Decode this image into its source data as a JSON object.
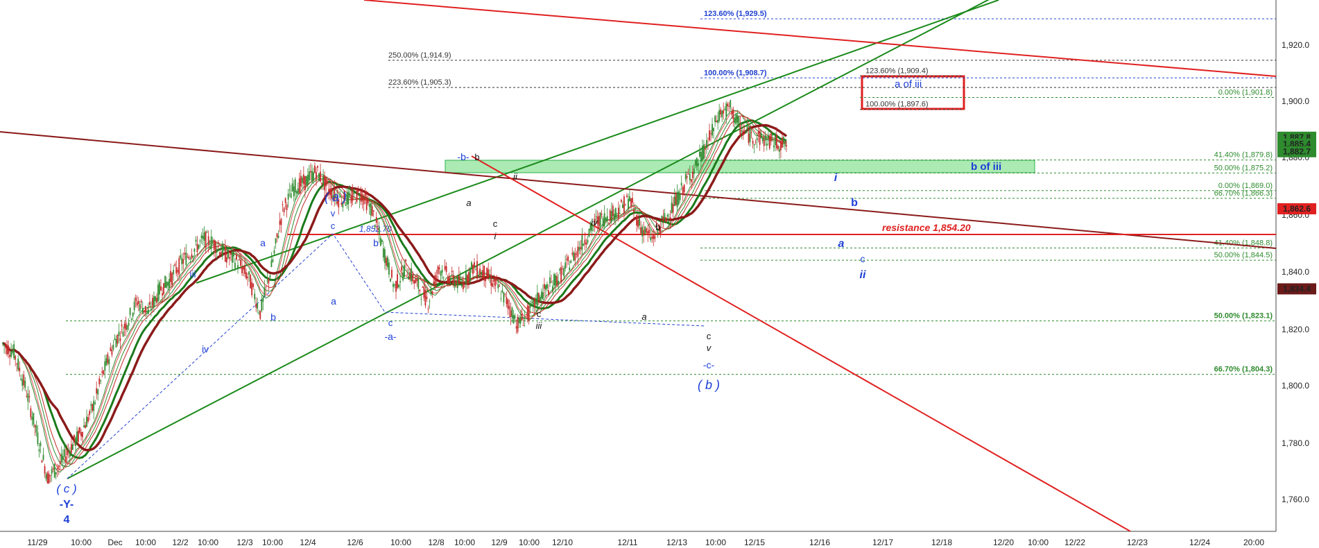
{
  "chart_data": {
    "type": "line",
    "title": "",
    "xlabel": "",
    "ylabel": "",
    "ylim": [
      1748,
      1938
    ],
    "grid": false,
    "x_tick_labels": [
      "11/29",
      "10:00",
      "Dec",
      "10:00",
      "12/2",
      "10:00",
      "12/3",
      "10:00",
      "12/4",
      "12/6",
      "10:00",
      "12/8",
      "10:00",
      "12/9",
      "10:00",
      "12/10",
      "12/11",
      "12/13",
      "10:00",
      "12/15",
      "12/16",
      "12/17",
      "12/18",
      "12/20",
      "10:00",
      "12/22",
      "12/23",
      "12/24",
      "20:00"
    ],
    "y_ticks": [
      "1,920.0",
      "1,900.0",
      "1,880.0",
      "1,860.0",
      "1,840.0",
      "1,820.0",
      "1,800.0",
      "1,780.0",
      "1,760.0"
    ],
    "price_series": {
      "name": "",
      "x": [
        0,
        20,
        40,
        60,
        80,
        100,
        120,
        140,
        160,
        180,
        200,
        220,
        240,
        260,
        280,
        300,
        320,
        340,
        360,
        380,
        400,
        420,
        440,
        460,
        480,
        500,
        520,
        540,
        560,
        580,
        600,
        620,
        640,
        660,
        680,
        700,
        720,
        740,
        760,
        780,
        800,
        820,
        840,
        860,
        880,
        900,
        920,
        940,
        960,
        980,
        1000,
        1020,
        1040,
        1060,
        1080,
        1100,
        1120,
        1140,
        1160,
        1180,
        1200,
        1220,
        1240,
        1260,
        1280,
        1300,
        1320,
        1340,
        1360,
        1380,
        1400
      ],
      "y": [
        1815,
        1812,
        1800,
        1784,
        1768,
        1772,
        1778,
        1784,
        1792,
        1805,
        1816,
        1822,
        1830,
        1826,
        1834,
        1838,
        1844,
        1848,
        1852,
        1850,
        1846,
        1844,
        1838,
        1826,
        1842,
        1862,
        1870,
        1872,
        1876,
        1870,
        1866,
        1866,
        1868,
        1862,
        1848,
        1835,
        1842,
        1836,
        1830,
        1842,
        1838,
        1836,
        1842,
        1840,
        1836,
        1830,
        1822,
        1826,
        1832,
        1836,
        1840,
        1846,
        1852,
        1858,
        1860,
        1862,
        1866,
        1856,
        1852,
        1858,
        1864,
        1872,
        1878,
        1886,
        1896,
        1898,
        1890,
        1888,
        1887,
        1886,
        1885
      ]
    },
    "price_labels": [
      {
        "value": 1887.8,
        "text": "1,887.8",
        "color": "#2e8b2e"
      },
      {
        "value": 1885.4,
        "text": "1,885.4",
        "color": "#2e8b2e"
      },
      {
        "value": 1882.7,
        "text": "1,882.7",
        "color": "#2e8b2e"
      },
      {
        "value": 1862.6,
        "text": "1,862.6",
        "color": "#e02020"
      },
      {
        "value": 1834.4,
        "text": "1,834.4",
        "color": "#6b1a1a"
      }
    ],
    "fib_levels": [
      {
        "text": "123.60% (1,929.5)",
        "value": 1929.5,
        "color": "#2040d0"
      },
      {
        "text": "250.00% (1,914.9)",
        "value": 1914.9,
        "color": "#333333"
      },
      {
        "text": "100.00% (1,908.7)",
        "value": 1908.7,
        "color": "#2040d0"
      },
      {
        "text": "123.60% (1,909.4)",
        "value": 1909.4,
        "color": "#333333"
      },
      {
        "text": "223.60% (1,905.3)",
        "value": 1905.3,
        "color": "#333333"
      },
      {
        "text": "0.00% (1,901.8)",
        "value": 1901.8,
        "color": "#2e8b2e"
      },
      {
        "text": "100.00% (1,897.6)",
        "value": 1897.6,
        "color": "#333333"
      },
      {
        "text": "41.40% (1,879.8)",
        "value": 1879.8,
        "color": "#2e8b2e"
      },
      {
        "text": "50.00% (1,875.2)",
        "value": 1875.2,
        "color": "#2e8b2e"
      },
      {
        "text": "0.00% (1,869.0)",
        "value": 1869.0,
        "color": "#2e8b2e"
      },
      {
        "text": "66.70% (1,866.3)",
        "value": 1866.3,
        "color": "#2e8b2e"
      },
      {
        "text": "41.40% (1,848.8)",
        "value": 1848.8,
        "color": "#2e8b2e"
      },
      {
        "text": "50.00% (1,844.5)",
        "value": 1844.5,
        "color": "#2e8b2e"
      },
      {
        "text": "50.00% (1,823.1)",
        "value": 1823.1,
        "color": "#2e8b2e"
      },
      {
        "text": "66.70% (1,804.3)",
        "value": 1804.3,
        "color": "#2e8b2e"
      }
    ],
    "resistance": {
      "text": "resistance 1,854.20",
      "value": 1854.2,
      "color": "#e02020"
    },
    "marked_high": {
      "text": "1,852.70",
      "value": 1852.7
    },
    "zones": [
      {
        "text": "b of iii",
        "low": 1876,
        "high": 1880,
        "color": "#39d353"
      },
      {
        "text": "a of iii",
        "low": 1897.6,
        "high": 1905.5,
        "color": "#e02020"
      }
    ],
    "wave_labels": [
      "( c )",
      "-Y-",
      "4",
      "iii",
      "iv",
      "a",
      "b",
      "a",
      "( a )",
      "v",
      "c",
      "b",
      "c",
      "-a-",
      "-b-",
      "b",
      "a",
      "ii",
      "c",
      "i",
      "c",
      "iii",
      "iv",
      "b",
      "a",
      "c",
      "v",
      "-c-",
      "( b )",
      "i",
      "b",
      "a",
      "c",
      "ii"
    ],
    "colors": {
      "up_candle": "#2e8b2e",
      "down_candle": "#c62828",
      "channel": "#1a8a1a",
      "downtrend": "#e02020",
      "long_trend": "#8b1a1a",
      "wave_blue": "#1c3fd6"
    }
  }
}
